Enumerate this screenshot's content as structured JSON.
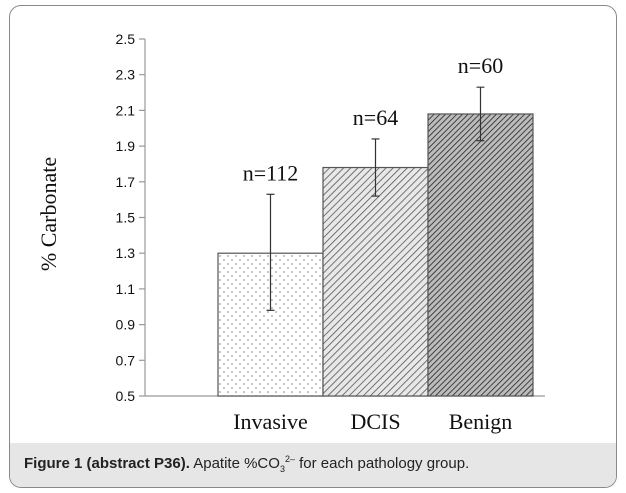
{
  "chart_data": {
    "type": "bar",
    "categories": [
      "Invasive",
      "DCIS",
      "Benign"
    ],
    "values": [
      1.3,
      1.78,
      2.08
    ],
    "error_low": [
      0.98,
      1.62,
      1.93
    ],
    "error_high": [
      1.63,
      1.94,
      2.23
    ],
    "data_labels": [
      "n=112",
      "n=64",
      "n=60"
    ],
    "ylabel": "% Carbonate",
    "ylim": [
      0.5,
      2.5
    ],
    "yticks": [
      "0.5",
      "0.7",
      "0.9",
      "1.1",
      "1.3",
      "1.5",
      "1.7",
      "1.9",
      "2.1",
      "2.3",
      "2.5"
    ],
    "grid": false,
    "fills": [
      "dotted",
      "diagonal-hatch",
      "dense-diagonal-hatch"
    ]
  },
  "caption": {
    "label": "Figure 1 (abstract P36).",
    "text_before": " Apatite %CO",
    "sub": "3",
    "sup": "2–",
    "text_after": " for each pathology group."
  }
}
